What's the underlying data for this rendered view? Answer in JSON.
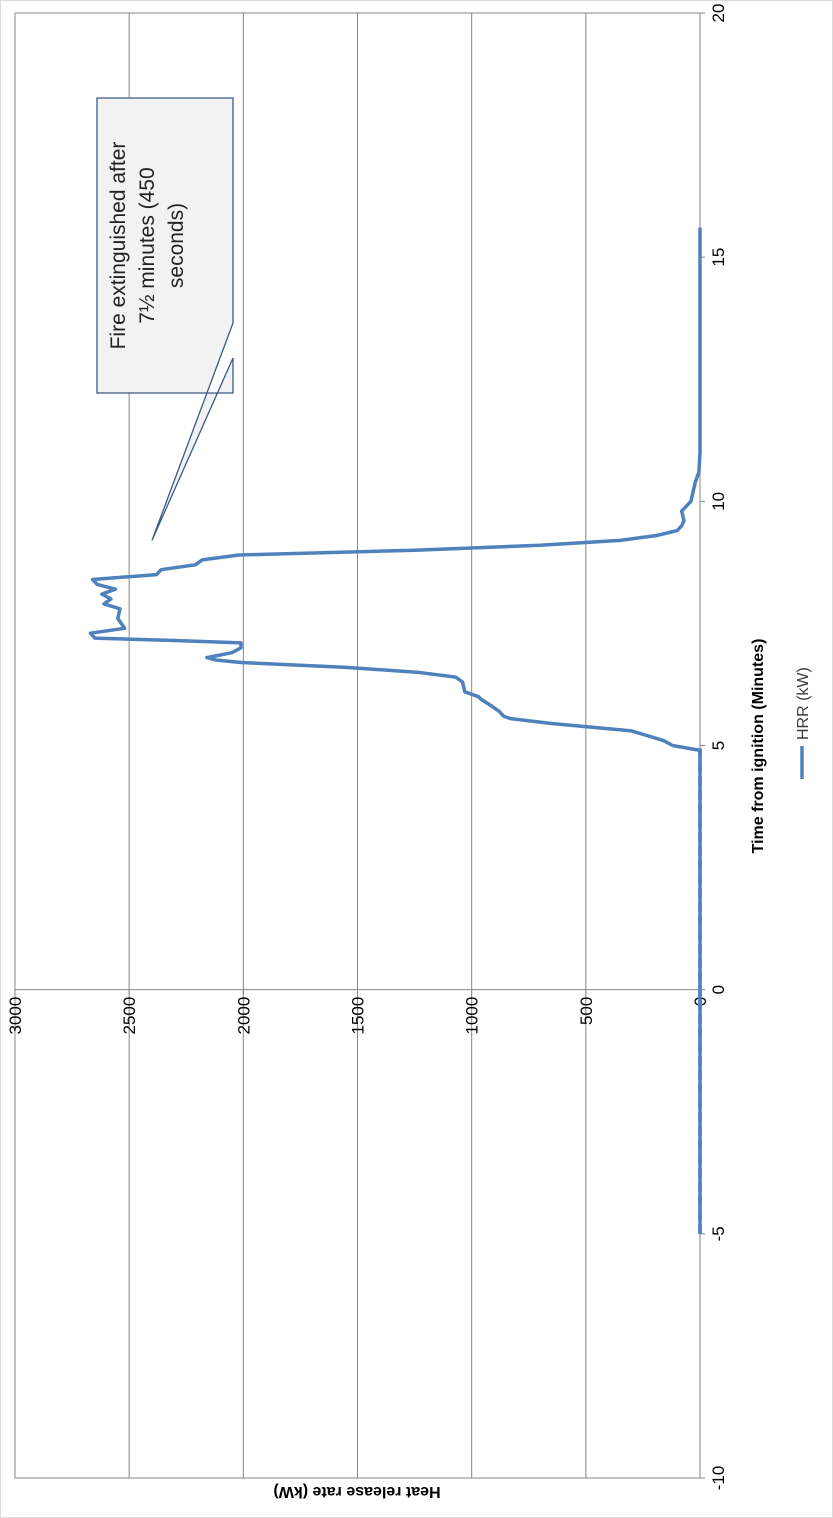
{
  "chart_data": {
    "type": "line",
    "title": "",
    "xlabel": "Time from ignition (Minutes)",
    "ylabel": "Heat release rate (kW)",
    "xlim": [
      -10,
      20
    ],
    "ylim": [
      0,
      3000
    ],
    "x_ticks": [
      -10,
      -5,
      0,
      5,
      10,
      15,
      20
    ],
    "y_ticks": [
      0,
      500,
      1000,
      1500,
      2000,
      2500,
      3000
    ],
    "grid": "horizontal",
    "legend": "bottom",
    "series": [
      {
        "name": "HRR (kW)",
        "color": "#4f81bd",
        "x": [
          -5,
          -2,
          0,
          2,
          4,
          4.9,
          5.0,
          5.1,
          5.3,
          5.45,
          5.55,
          5.6,
          5.7,
          5.8,
          5.95,
          6.0,
          6.1,
          6.3,
          6.4,
          6.5,
          6.6,
          6.7,
          6.75,
          6.8,
          6.9,
          7.0,
          7.1,
          7.15,
          7.2,
          7.3,
          7.4,
          7.6,
          7.8,
          7.9,
          8.0,
          8.1,
          8.2,
          8.3,
          8.4,
          8.5,
          8.6,
          8.7,
          8.8,
          8.9,
          9.0,
          9.1,
          9.2,
          9.3,
          9.4,
          9.5,
          9.6,
          9.8,
          10.0,
          10.2,
          10.4,
          10.6,
          11.0,
          13.0,
          15.6
        ],
        "values": [
          0,
          0,
          0,
          0,
          0,
          0,
          120,
          160,
          300,
          650,
          830,
          860,
          880,
          910,
          960,
          970,
          1030,
          1040,
          1070,
          1240,
          1550,
          2010,
          2120,
          2160,
          2050,
          2010,
          2010,
          2300,
          2650,
          2670,
          2520,
          2550,
          2540,
          2610,
          2580,
          2620,
          2560,
          2640,
          2660,
          2380,
          2360,
          2210,
          2180,
          2020,
          1250,
          700,
          350,
          190,
          100,
          80,
          70,
          80,
          40,
          30,
          20,
          5,
          0,
          0,
          0
        ]
      }
    ],
    "annotations": [
      {
        "text_lines": [
          "Fire extinguished after",
          "7½ minutes (450",
          "seconds)"
        ],
        "x": 9.2,
        "y": 2400
      }
    ]
  }
}
